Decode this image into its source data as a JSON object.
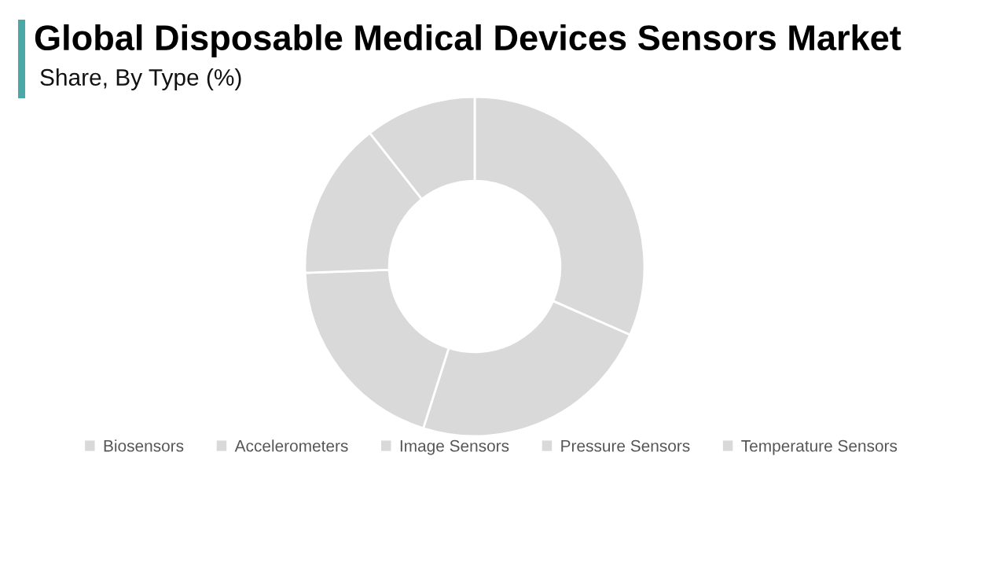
{
  "chart_data": {
    "type": "donut",
    "title": "Global Disposable Medical Devices Sensors Market",
    "subtitle": "Share, By Type (%)",
    "categories": [
      "Biosensors",
      "Accelerometers",
      "Image Sensors",
      "Pressure Sensors",
      "Temperature Sensors"
    ],
    "values": [
      31.6,
      23.3,
      19.5,
      15.0,
      10.6
    ],
    "colors": [
      "#d9d9d9",
      "#d9d9d9",
      "#d9d9d9",
      "#d9d9d9",
      "#d9d9d9"
    ],
    "legend": "bottom"
  }
}
